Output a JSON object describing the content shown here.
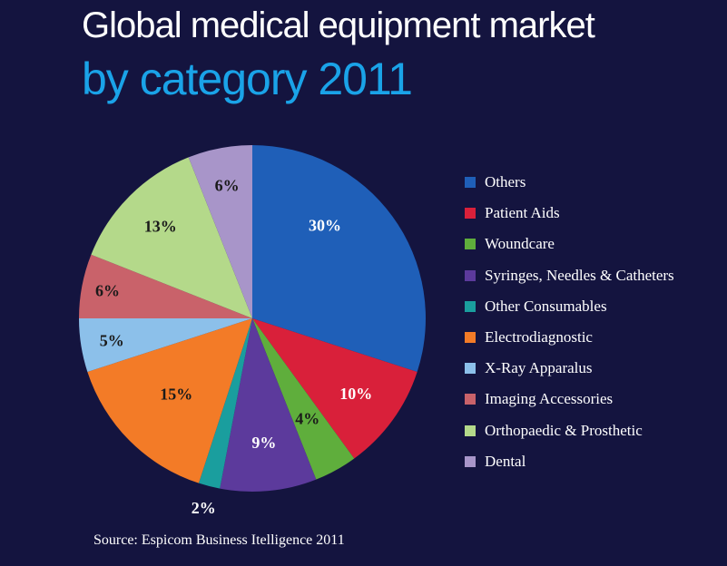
{
  "title_line1": "Global medical equipment market",
  "title_line2": "by category 2011",
  "source": "Source: Espicom Business Itelligence 2011",
  "colors": {
    "background": "#14143f",
    "title_accent": "#1aa3e8"
  },
  "chart_data": {
    "type": "pie",
    "title": "Global medical equipment market by category 2011",
    "legend_position": "right",
    "series": [
      {
        "name": "Others",
        "value": 30,
        "label": "30%",
        "color": "#1f5fb8"
      },
      {
        "name": "Patient Aids",
        "value": 10,
        "label": "10%",
        "color": "#d9203a"
      },
      {
        "name": "Woundcare",
        "value": 4,
        "label": "4%",
        "color": "#5fae3c"
      },
      {
        "name": "Syringes, Needles & Catheters",
        "value": 9,
        "label": "9%",
        "color": "#5c3a9c"
      },
      {
        "name": "Other Consumables",
        "value": 2,
        "label": "2%",
        "color": "#1a9e9e"
      },
      {
        "name": "Electrodiagnostic",
        "value": 15,
        "label": "15%",
        "color": "#f37b27"
      },
      {
        "name": "X-Ray Apparalus",
        "value": 5,
        "label": "5%",
        "color": "#8cc0ea"
      },
      {
        "name": "Imaging Accessories",
        "value": 6,
        "label": "6%",
        "color": "#c9626a"
      },
      {
        "name": "Orthopaedic & Prosthetic",
        "value": 13,
        "label": "13%",
        "color": "#b4d98a"
      },
      {
        "name": "Dental",
        "value": 6,
        "label": "6%",
        "color": "#a895c9"
      }
    ]
  }
}
